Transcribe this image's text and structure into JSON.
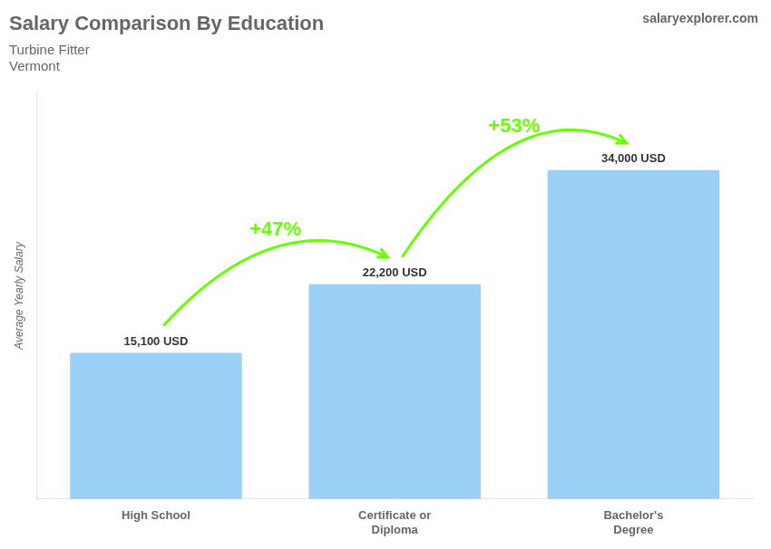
{
  "chart_data": {
    "type": "bar",
    "title": "Salary Comparison By Education",
    "subtitle": [
      "Turbine Fitter",
      "Vermont"
    ],
    "source": "salaryexplorer.com",
    "y_label": "Average Yearly Salary",
    "categories": [
      "High School",
      "Certificate or\nDiploma",
      "Bachelor's\nDegree"
    ],
    "values": [
      15100,
      22200,
      34000
    ],
    "value_labels": [
      "15,100 USD",
      "22,200 USD",
      "34,000 USD"
    ],
    "data_labels": true,
    "annotations": [
      {
        "text": "+47%",
        "color": "#66ff00"
      },
      {
        "text": "+53%",
        "color": "#66ff00"
      }
    ],
    "ylim": [
      0,
      42000
    ],
    "yticks": [],
    "tick_labels": "x",
    "grid": false
  }
}
